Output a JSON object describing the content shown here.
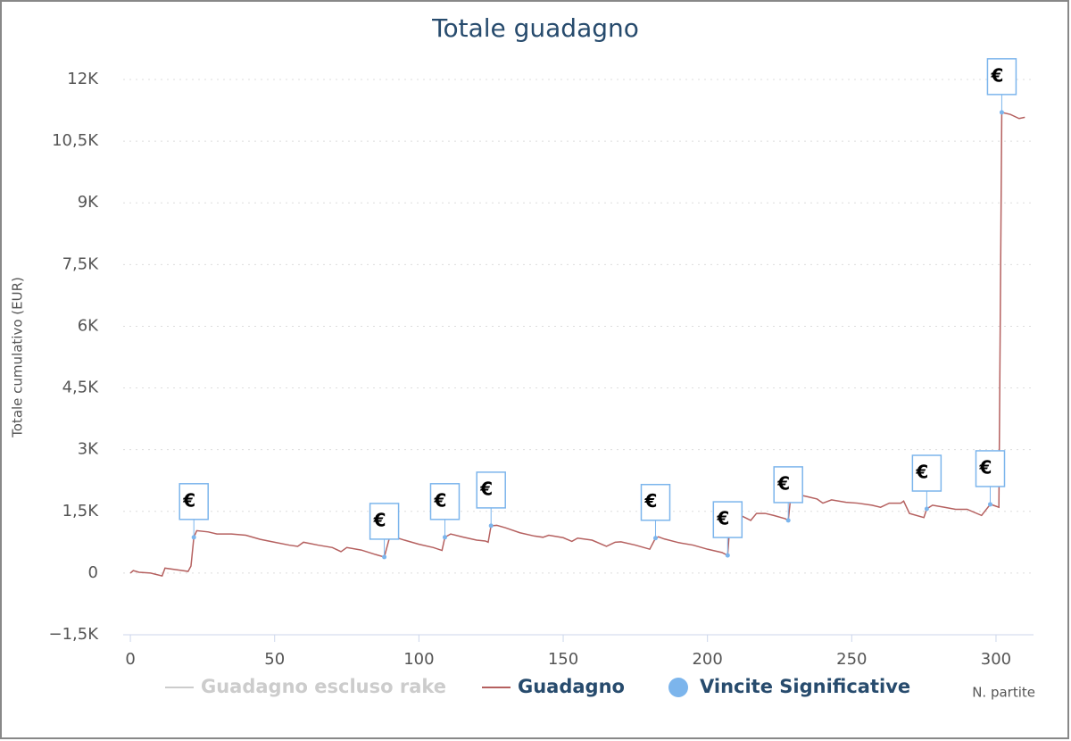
{
  "chart_data": {
    "type": "line",
    "title": "Totale guadagno",
    "y_label": "Totale cumulativo (EUR)",
    "x_label": "N. partite",
    "xlim": [
      -2.5,
      313
    ],
    "xticks": [
      0,
      50,
      100,
      150,
      200,
      250,
      300
    ],
    "ylim": [
      -1500,
      12000
    ],
    "yticks": [
      {
        "value": -1500,
        "label": "−1,5K"
      },
      0,
      {
        "value": 1500,
        "label": "1,5K"
      },
      {
        "value": 3000,
        "label": "3K"
      },
      {
        "value": 4500,
        "label": "4,5K"
      },
      {
        "value": 6000,
        "label": "6K"
      },
      {
        "value": 7500,
        "label": "7,5K"
      },
      {
        "value": 9000,
        "label": "9K"
      },
      {
        "value": 10500,
        "label": "10,5K"
      },
      {
        "value": 12000,
        "label": "12K"
      }
    ],
    "grid": true,
    "series": [
      {
        "name": "Guadagno escluso rake",
        "color": "#cccccc",
        "visible": false
      },
      {
        "name": "Guadagno",
        "color": "#b5605f",
        "visible": true,
        "x": [
          0,
          1,
          3,
          7,
          11,
          12,
          17,
          20,
          21,
          22,
          23,
          27,
          30,
          35,
          40,
          45,
          50,
          55,
          58,
          60,
          65,
          70,
          73,
          75,
          80,
          85,
          88,
          90,
          95,
          100,
          105,
          108,
          109,
          111,
          115,
          120,
          123,
          124,
          125,
          127,
          130,
          135,
          140,
          143,
          145,
          150,
          153,
          155,
          160,
          165,
          168,
          170,
          175,
          180,
          182,
          183,
          185,
          190,
          195,
          200,
          205,
          207,
          208,
          210,
          213,
          215,
          217,
          220,
          223,
          227,
          228,
          229,
          232,
          235,
          238,
          240,
          243,
          248,
          252,
          257,
          260,
          263,
          267,
          268,
          270,
          275,
          276,
          278,
          282,
          286,
          290,
          295,
          298,
          299,
          301,
          302,
          305,
          308,
          310
        ],
        "values": [
          0,
          60,
          20,
          0,
          -70,
          120,
          70,
          40,
          170,
          870,
          1030,
          1000,
          950,
          950,
          920,
          820,
          750,
          680,
          650,
          750,
          680,
          620,
          520,
          620,
          560,
          450,
          390,
          910,
          800,
          700,
          620,
          550,
          870,
          950,
          880,
          800,
          780,
          750,
          1150,
          1160,
          1100,
          980,
          900,
          870,
          920,
          860,
          770,
          850,
          800,
          650,
          750,
          760,
          680,
          580,
          850,
          880,
          830,
          740,
          680,
          580,
          500,
          430,
          1420,
          1450,
          1350,
          1280,
          1450,
          1450,
          1400,
          1320,
          1280,
          1950,
          1900,
          1850,
          1800,
          1700,
          1780,
          1720,
          1700,
          1650,
          1600,
          1700,
          1700,
          1750,
          1450,
          1350,
          1560,
          1650,
          1600,
          1550,
          1550,
          1400,
          1670,
          1650,
          1600,
          11200,
          11150,
          11050,
          11080
        ]
      },
      {
        "name": "Vincite Significative",
        "color": "#7cb5ec",
        "visible": true,
        "kind": "flags",
        "flag": "€",
        "x": [
          22,
          88,
          109,
          125,
          182,
          207,
          228,
          276,
          298,
          302
        ],
        "values": [
          870,
          390,
          870,
          1150,
          850,
          430,
          1280,
          1560,
          1670,
          11200
        ]
      }
    ]
  }
}
